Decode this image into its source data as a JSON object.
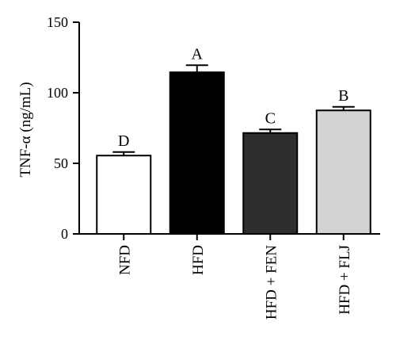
{
  "chart_data": {
    "type": "bar",
    "title": "",
    "xlabel": "",
    "ylabel": "TNF-α (ng/mL)",
    "ylim": [
      0,
      150
    ],
    "yticks": [
      0,
      50,
      100,
      150
    ],
    "categories": [
      "NFD",
      "HFD",
      "HFD + FEN",
      "HFD + FLJ"
    ],
    "values": [
      55.5,
      114.5,
      71.5,
      87.5
    ],
    "errors": [
      2.5,
      5.0,
      2.5,
      2.5
    ],
    "significance": [
      "D",
      "A",
      "C",
      "B"
    ],
    "colors": [
      "#ffffff",
      "#000000",
      "#2e2e2e",
      "#d3d3d3"
    ],
    "grid": false
  }
}
